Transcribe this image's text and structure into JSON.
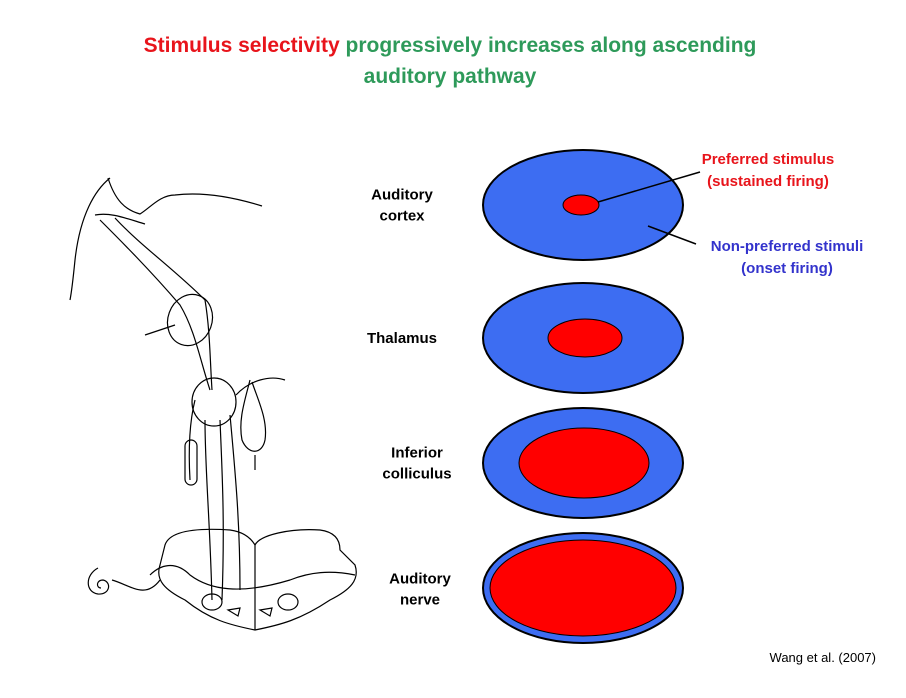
{
  "title": {
    "highlight": "Stimulus selectivity",
    "line1_rest": "progressively increases along ascending",
    "line2": "auditory pathway"
  },
  "stages": [
    {
      "label_lines": [
        "Auditory",
        "cortex"
      ]
    },
    {
      "label_lines": [
        "Thalamus"
      ]
    },
    {
      "label_lines": [
        "Inferior",
        "colliculus"
      ]
    },
    {
      "label_lines": [
        "Auditory",
        "nerve"
      ]
    }
  ],
  "annotations": {
    "preferred": [
      "Preferred stimulus",
      "(sustained firing)"
    ],
    "non_preferred": [
      "Non-preferred stimuli",
      "(onset firing)"
    ]
  },
  "citation": "Wang et al. (2007)"
}
